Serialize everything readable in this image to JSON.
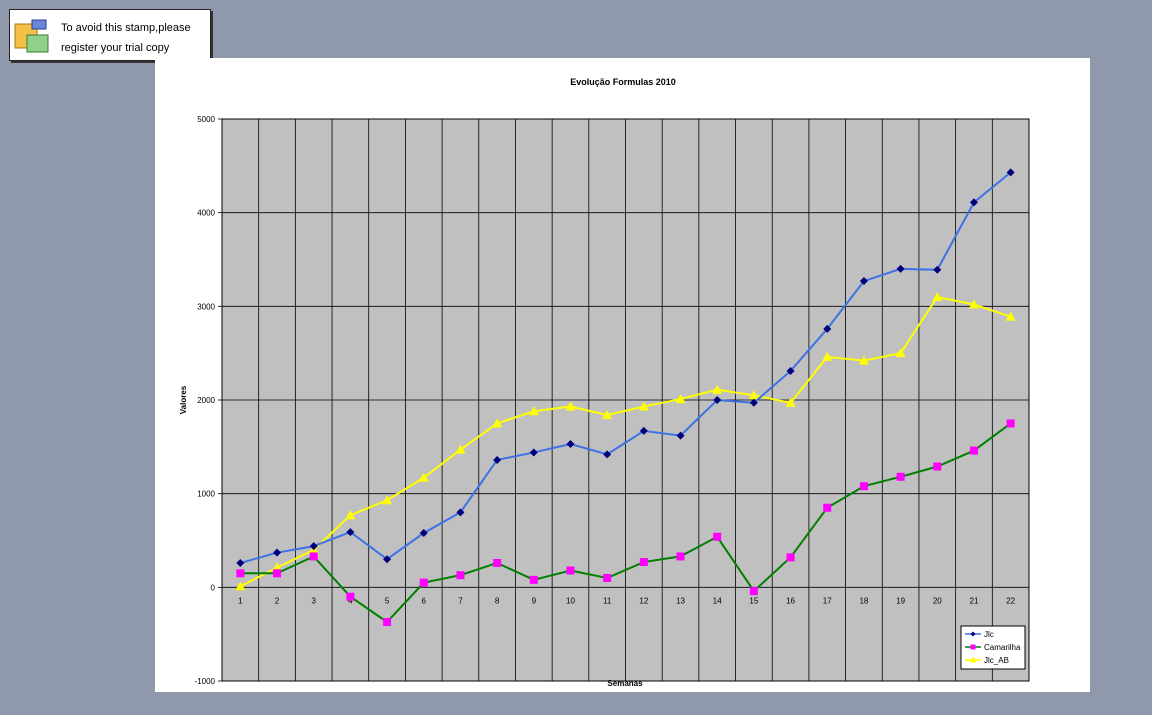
{
  "stamp": {
    "line1": "To avoid this stamp,please",
    "line2": "register your trial copy"
  },
  "chart_data": {
    "type": "line",
    "title": "Evolução Formulas 2010",
    "xlabel": "Semanas",
    "ylabel": "Valores",
    "categories": [
      "1",
      "2",
      "3",
      "4",
      "5",
      "6",
      "7",
      "8",
      "9",
      "10",
      "11",
      "12",
      "13",
      "14",
      "15",
      "16",
      "17",
      "18",
      "19",
      "20",
      "21",
      "22"
    ],
    "yticks": [
      "-1000",
      "0",
      "1000",
      "2000",
      "3000",
      "4000",
      "5000"
    ],
    "ylim": [
      -1000,
      5000
    ],
    "grid": true,
    "legend_position": "bottom-right",
    "series": [
      {
        "name": "Jlc",
        "line_color": "#3c72e6",
        "marker_color": "#00007a",
        "marker": "diamond",
        "values": [
          260,
          370,
          440,
          590,
          300,
          580,
          800,
          1360,
          1440,
          1530,
          1420,
          1670,
          1620,
          2000,
          1970,
          2310,
          2760,
          3270,
          3400,
          3390,
          4110,
          4430
        ]
      },
      {
        "name": "Camarilha",
        "line_color": "#008000",
        "marker_color": "#ff00ff",
        "marker": "square",
        "values": [
          150,
          150,
          330,
          -100,
          -370,
          50,
          130,
          260,
          80,
          180,
          100,
          270,
          330,
          540,
          -40,
          320,
          850,
          1080,
          1180,
          1290,
          1460,
          1750
        ]
      },
      {
        "name": "Jlc_AB",
        "line_color": "#ffff00",
        "marker_color": "#ffff00",
        "marker": "triangle",
        "values": [
          10,
          210,
          400,
          770,
          930,
          1170,
          1470,
          1750,
          1880,
          1930,
          1840,
          1930,
          2010,
          2110,
          2050,
          1970,
          2460,
          2420,
          2500,
          3100,
          3020,
          2890
        ]
      }
    ]
  }
}
